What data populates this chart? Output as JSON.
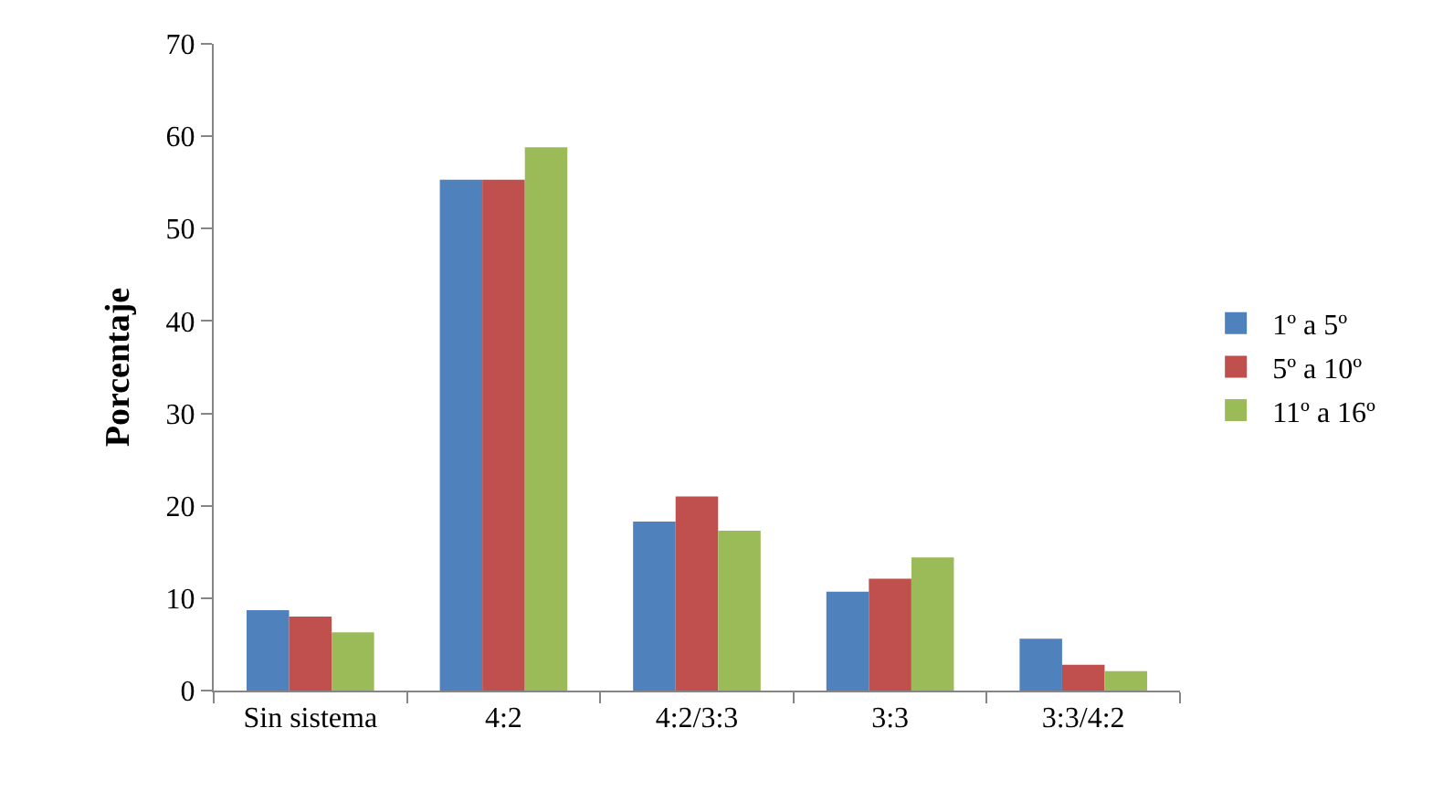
{
  "chart_data": {
    "type": "bar",
    "ylabel": "Porcentaje",
    "categories": [
      "Sin sistema",
      "4:2",
      "4:2/3:3",
      "3:3",
      "3:3/4:2"
    ],
    "series": [
      {
        "name": "1º a 5º",
        "color": "#4f81bd",
        "values": [
          8.7,
          55.3,
          18.3,
          10.7,
          5.6
        ]
      },
      {
        "name": "5º a 10º",
        "color": "#c0504d",
        "values": [
          8.0,
          55.3,
          21.0,
          12.1,
          2.8
        ]
      },
      {
        "name": "11º a 16º",
        "color": "#9bbb59",
        "values": [
          6.3,
          58.8,
          17.3,
          14.4,
          2.1
        ]
      }
    ],
    "ylim": [
      0,
      70
    ],
    "yticks": [
      0,
      10,
      20,
      30,
      40,
      50,
      60,
      70
    ],
    "legend": "right"
  }
}
